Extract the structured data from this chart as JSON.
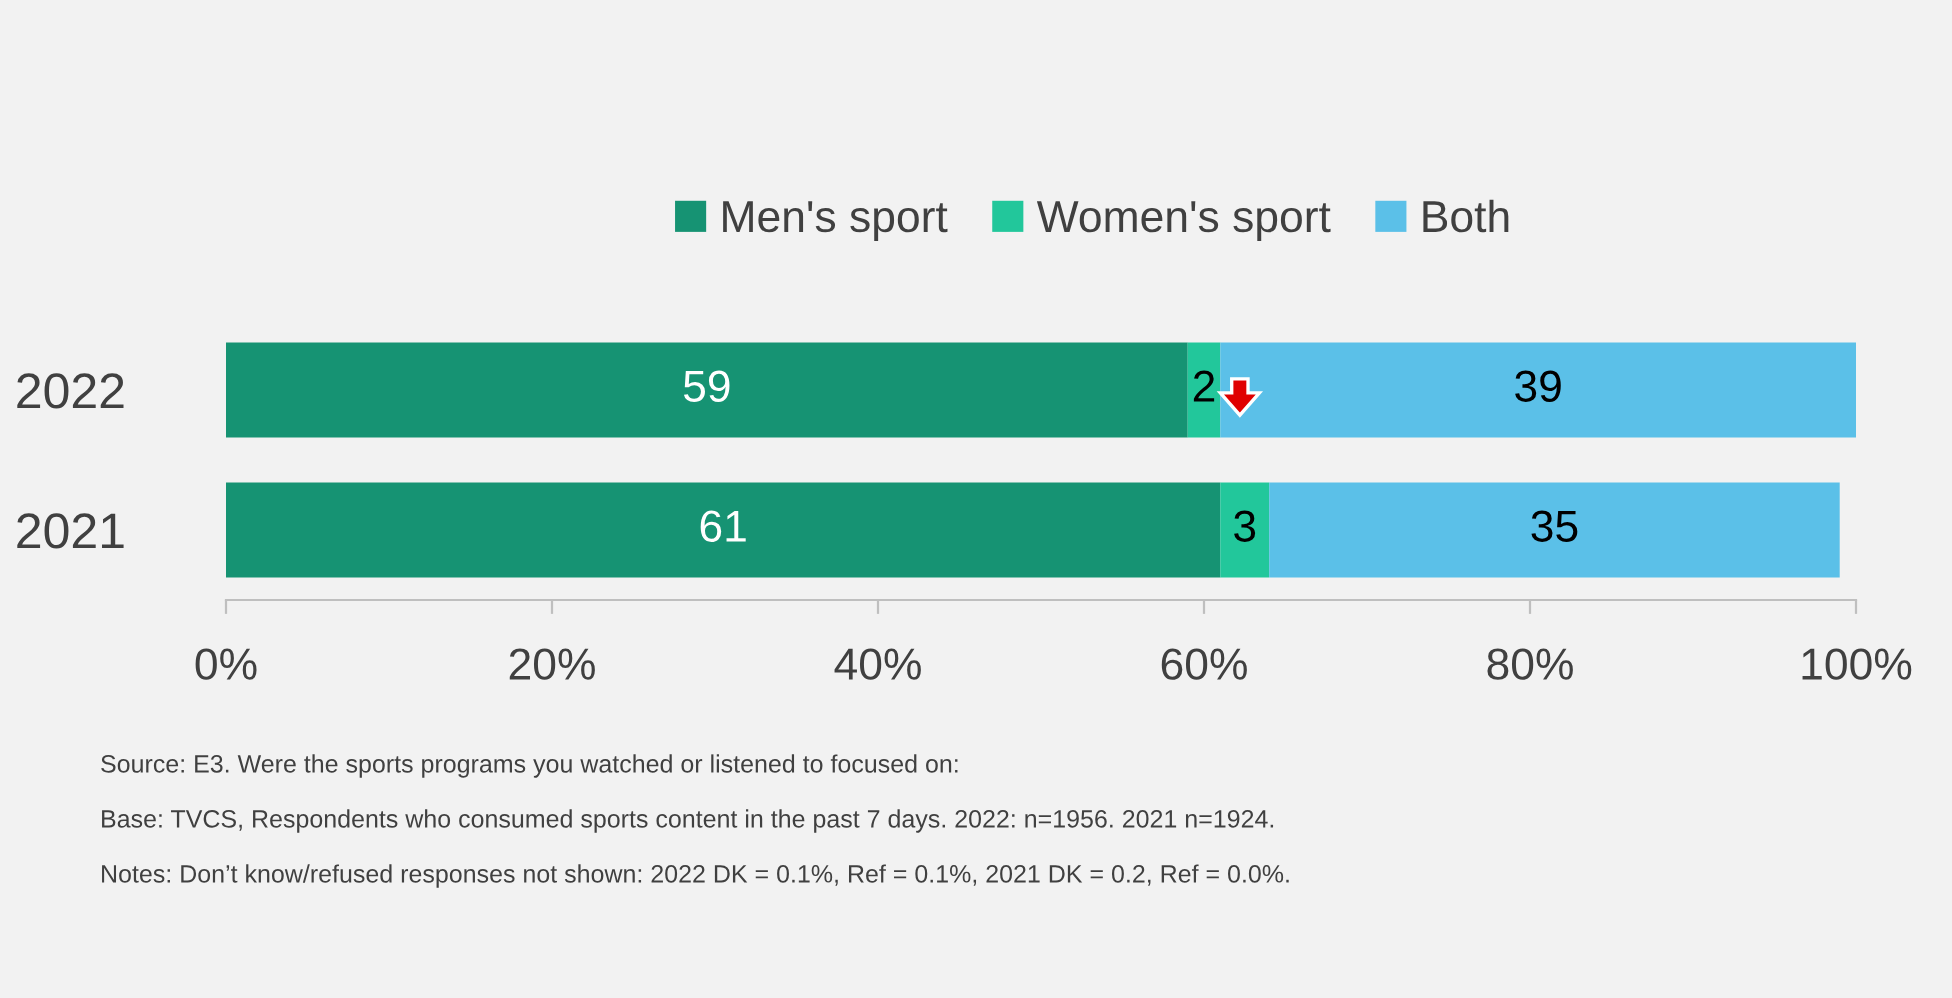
{
  "chart_data": {
    "type": "bar",
    "orientation": "horizontal",
    "stacked": true,
    "categories": [
      "2022",
      "2021"
    ],
    "series": [
      {
        "name": "Men's sport",
        "color": "#169373",
        "values": [
          59,
          61
        ]
      },
      {
        "name": "Women's sport",
        "color": "#22c79b",
        "values": [
          2,
          3
        ]
      },
      {
        "name": "Both",
        "color": "#5bc0e8",
        "values": [
          39,
          35
        ]
      }
    ],
    "xlim": [
      0,
      100
    ],
    "xticks": [
      {
        "value": 0,
        "label": "0%"
      },
      {
        "value": 20,
        "label": "20%"
      },
      {
        "value": 40,
        "label": "40%"
      },
      {
        "value": 60,
        "label": "60%"
      },
      {
        "value": 80,
        "label": "80%"
      },
      {
        "value": 100,
        "label": "100%"
      }
    ],
    "data_labels": true,
    "legend": "top",
    "grid": false,
    "annotations": [
      "Source: E3. Were the sports programs you watched or listened to focused on:",
      "Base: TVCS, Respondents who consumed sports content in the past 7 days. 2022: n=1956. 2021 n=1924.",
      "Notes: Don’t know/refused responses not shown: 2022 DK = 0.1%, Ref = 0.1%, 2021 DK = 0.2, Ref = 0.0%."
    ]
  }
}
